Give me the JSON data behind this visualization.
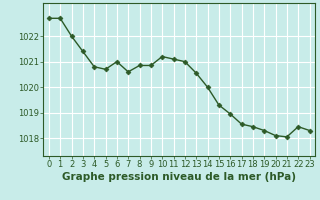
{
  "x": [
    0,
    1,
    2,
    3,
    4,
    5,
    6,
    7,
    8,
    9,
    10,
    11,
    12,
    13,
    14,
    15,
    16,
    17,
    18,
    19,
    20,
    21,
    22,
    23
  ],
  "y": [
    1022.7,
    1022.7,
    1022.0,
    1021.4,
    1020.8,
    1020.7,
    1021.0,
    1020.6,
    1020.85,
    1020.85,
    1021.2,
    1021.1,
    1021.0,
    1020.55,
    1020.0,
    1019.3,
    1018.95,
    1018.55,
    1018.45,
    1018.3,
    1018.1,
    1018.05,
    1018.45,
    1018.3
  ],
  "line_color": "#2d5a27",
  "marker_color": "#2d5a27",
  "background_color": "#c8ece9",
  "grid_color": "#ffffff",
  "xlabel": "Graphe pression niveau de la mer (hPa)",
  "xlabel_fontsize": 7.5,
  "xlabel_color": "#2d5a27",
  "ylabel_ticks": [
    1018,
    1019,
    1020,
    1021,
    1022
  ],
  "ylim": [
    1017.3,
    1023.3
  ],
  "xlim": [
    -0.5,
    23.5
  ],
  "xtick_labels": [
    "0",
    "1",
    "2",
    "3",
    "4",
    "5",
    "6",
    "7",
    "8",
    "9",
    "10",
    "11",
    "12",
    "13",
    "14",
    "15",
    "16",
    "17",
    "18",
    "19",
    "20",
    "21",
    "22",
    "23"
  ],
  "tick_color": "#2d5a27",
  "tick_fontsize": 6.0,
  "spine_color": "#2d5a27"
}
